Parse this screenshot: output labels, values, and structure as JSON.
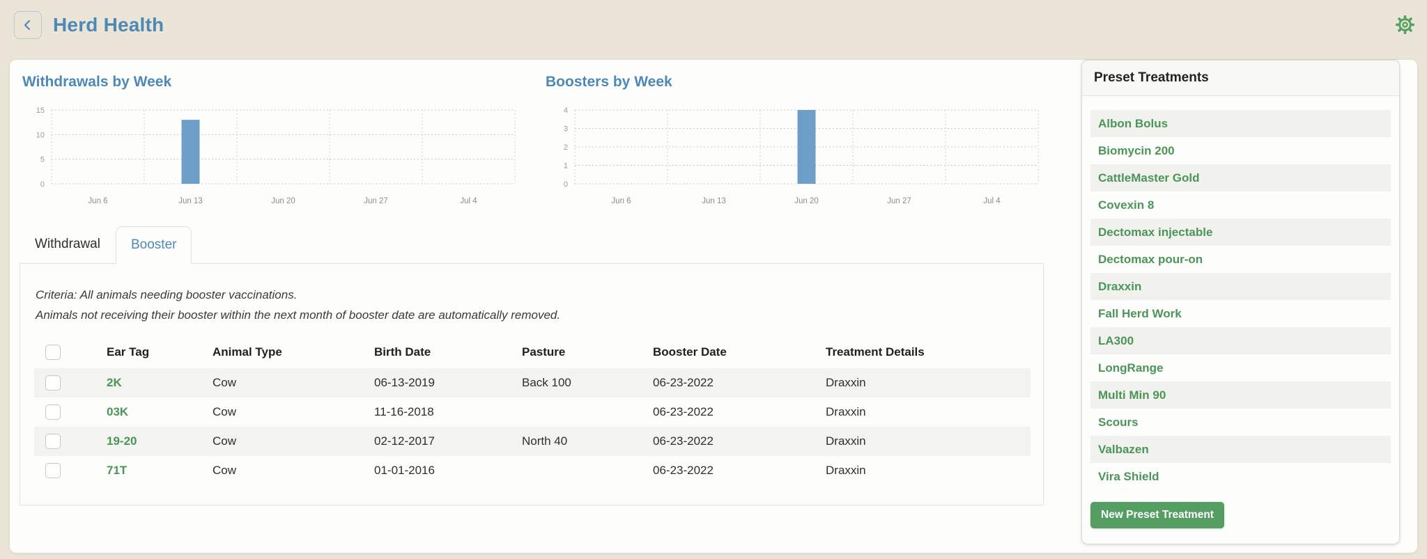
{
  "header": {
    "title": "Herd Health"
  },
  "icons": {
    "back_chevron": "chevron-left",
    "settings": "gear"
  },
  "colors": {
    "page_background": "#ebe5d7",
    "panel_background": "#fdfdfb",
    "accent_blue": "#4d88b7",
    "bar_blue": "#6d9ec7",
    "accent_green": "#4b9559",
    "button_green": "#559e63",
    "stripe_gray": "#f3f3f0",
    "grid_gray": "#c9c9c9"
  },
  "chart_data": [
    {
      "type": "bar",
      "title": "Withdrawals by Week",
      "categories": [
        "Jun 6",
        "Jun 13",
        "Jun 20",
        "Jun 27",
        "Jul 4"
      ],
      "values": [
        0,
        13,
        0,
        0,
        0
      ],
      "xlabel": "",
      "ylabel": "",
      "ylim": [
        0,
        15
      ],
      "yticks": [
        0,
        5,
        10,
        15
      ],
      "grid": "dashed",
      "legend": "none",
      "bar_color": "#6d9ec7"
    },
    {
      "type": "bar",
      "title": "Boosters by Week",
      "categories": [
        "Jun 6",
        "Jun 13",
        "Jun 20",
        "Jun 27",
        "Jul 4"
      ],
      "values": [
        0,
        0,
        4,
        0,
        0
      ],
      "xlabel": "",
      "ylabel": "",
      "ylim": [
        0,
        4
      ],
      "yticks": [
        0,
        1,
        2,
        3,
        4
      ],
      "grid": "dashed",
      "legend": "none",
      "bar_color": "#6d9ec7"
    }
  ],
  "tabs": [
    {
      "label": "Withdrawal",
      "active": false
    },
    {
      "label": "Booster",
      "active": true
    }
  ],
  "criteria": {
    "line1": "Criteria: All animals needing booster vaccinations.",
    "line2": "Animals not receiving their booster within the next month of booster date are automatically removed."
  },
  "table": {
    "columns": [
      "Ear Tag",
      "Animal Type",
      "Birth Date",
      "Pasture",
      "Booster Date",
      "Treatment Details"
    ],
    "rows": [
      {
        "ear_tag": "2K",
        "animal_type": "Cow",
        "birth_date": "06-13-2019",
        "pasture": "Back 100",
        "booster_date": "06-23-2022",
        "treatment_details": "Draxxin"
      },
      {
        "ear_tag": "03K",
        "animal_type": "Cow",
        "birth_date": "11-16-2018",
        "pasture": "",
        "booster_date": "06-23-2022",
        "treatment_details": "Draxxin"
      },
      {
        "ear_tag": "19-20",
        "animal_type": "Cow",
        "birth_date": "02-12-2017",
        "pasture": "North 40",
        "booster_date": "06-23-2022",
        "treatment_details": "Draxxin"
      },
      {
        "ear_tag": "71T",
        "animal_type": "Cow",
        "birth_date": "01-01-2016",
        "pasture": "",
        "booster_date": "06-23-2022",
        "treatment_details": "Draxxin"
      }
    ]
  },
  "sidebar": {
    "title": "Preset Treatments",
    "items": [
      "Albon Bolus",
      "Biomycin 200",
      "CattleMaster Gold",
      "Covexin 8",
      "Dectomax injectable",
      "Dectomax pour-on",
      "Draxxin",
      "Fall Herd Work",
      "LA300",
      "LongRange",
      "Multi Min 90",
      "Scours",
      "Valbazen",
      "Vira Shield"
    ],
    "button_label": "New Preset Treatment"
  }
}
